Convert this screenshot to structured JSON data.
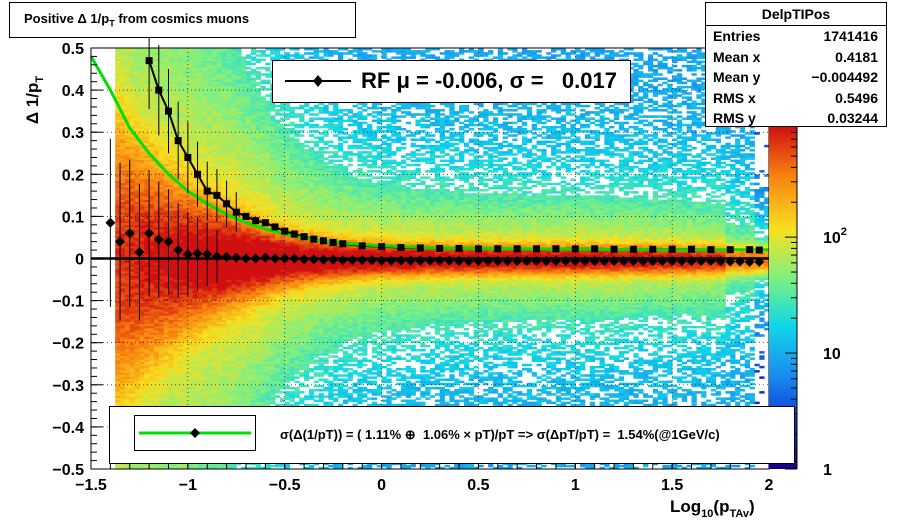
{
  "title": "Positive Δ 1/p",
  "title_sub": "T",
  "title_rest": " from cosmics muons",
  "stats": {
    "name": "DelpTIPos",
    "rows": [
      {
        "label": "Entries",
        "value": "1741416"
      },
      {
        "label": "Mean x",
        "value": "0.4181"
      },
      {
        "label": "Mean y",
        "value": "−0.004492"
      },
      {
        "label": "RMS x",
        "value": "0.5496"
      },
      {
        "label": "RMS y",
        "value": "0.03244"
      }
    ]
  },
  "rf_legend": "RF μ = -0.006, σ =   0.017",
  "fit_legend": "σ(Δ(1/pT)) = ( 1.11% ⊕  1.06% × pT)/pT => σ(ΔpT/pT) =  1.54%(@1GeV/c)",
  "chart_data": {
    "type": "heatmap",
    "title": "Positive Δ 1/pT from cosmics muons",
    "xlabel": "Log10(pTAv)",
    "ylabel": "Δ 1/pT",
    "xlim": [
      -1.5,
      2
    ],
    "ylim": [
      -0.5,
      0.5
    ],
    "x_ticks": [
      "−1.5",
      "−1",
      "−0.5",
      "0",
      "0.5",
      "1",
      "1.5",
      "2"
    ],
    "y_ticks": [
      "−0.5",
      "−0.4",
      "−0.3",
      "−0.2",
      "−0.1",
      "0",
      "0.1",
      "0.2",
      "0.3",
      "0.4",
      "0.5"
    ],
    "z_scale": "log",
    "z_ticks": [
      "1",
      "10",
      "10^2"
    ],
    "grid": true,
    "colors": {
      "fit_line": "#00e000",
      "mean_line": "#000000",
      "markers": "#000000"
    },
    "series": [
      {
        "name": "sigma",
        "marker": "square",
        "x": [
          -1.2,
          -1.15,
          -1.1,
          -1.05,
          -1.0,
          -0.95,
          -0.9,
          -0.85,
          -0.8,
          -0.75,
          -0.7,
          -0.65,
          -0.6,
          -0.55,
          -0.5,
          -0.45,
          -0.4,
          -0.35,
          -0.3,
          -0.25,
          -0.2,
          -0.1,
          0.0,
          0.1,
          0.2,
          0.3,
          0.4,
          0.5,
          0.6,
          0.7,
          0.8,
          0.9,
          1.0,
          1.1,
          1.2,
          1.3,
          1.4,
          1.5,
          1.6,
          1.7,
          1.8,
          1.9,
          1.95
        ],
        "y": [
          0.47,
          0.4,
          0.35,
          0.28,
          0.24,
          0.2,
          0.16,
          0.15,
          0.13,
          0.11,
          0.1,
          0.09,
          0.085,
          0.075,
          0.065,
          0.058,
          0.052,
          0.046,
          0.042,
          0.038,
          0.035,
          0.03,
          0.028,
          0.026,
          0.025,
          0.024,
          0.024,
          0.023,
          0.023,
          0.023,
          0.023,
          0.023,
          0.023,
          0.023,
          0.022,
          0.022,
          0.022,
          0.022,
          0.022,
          0.021,
          0.021,
          0.021,
          0.02
        ]
      },
      {
        "name": "mean",
        "marker": "diamond",
        "x": [
          -1.4,
          -1.35,
          -1.3,
          -1.25,
          -1.2,
          -1.15,
          -1.1,
          -1.05,
          -1.0,
          -0.95,
          -0.9,
          -0.85,
          -0.8,
          -0.75,
          -0.7,
          -0.65,
          -0.6,
          -0.55,
          -0.5,
          -0.45,
          -0.4,
          -0.35,
          -0.3,
          -0.25,
          -0.2,
          -0.15,
          -0.1,
          -0.05,
          0.0,
          0.05,
          0.1,
          0.15,
          0.2,
          0.25,
          0.3,
          0.35,
          0.4,
          0.45,
          0.5,
          0.55,
          0.6,
          0.65,
          0.7,
          0.75,
          0.8,
          0.85,
          0.9,
          0.95,
          1.0,
          1.05,
          1.1,
          1.15,
          1.2,
          1.25,
          1.3,
          1.35,
          1.4,
          1.45,
          1.5,
          1.55,
          1.6,
          1.65,
          1.7,
          1.75,
          1.8,
          1.85,
          1.9,
          1.95
        ],
        "y": [
          0.085,
          0.04,
          0.06,
          0.015,
          0.06,
          0.045,
          0.04,
          0.02,
          0.01,
          0.012,
          0.01,
          0.005,
          0.004,
          0.002,
          0.0,
          0.0,
          0.002,
          0.0,
          0.0,
          0.0,
          -0.002,
          -0.002,
          -0.003,
          -0.003,
          -0.004,
          -0.004,
          -0.004,
          -0.004,
          -0.005,
          -0.005,
          -0.005,
          -0.005,
          -0.005,
          -0.005,
          -0.005,
          -0.005,
          -0.006,
          -0.006,
          -0.006,
          -0.006,
          -0.006,
          -0.006,
          -0.006,
          -0.006,
          -0.006,
          -0.006,
          -0.006,
          -0.006,
          -0.006,
          -0.006,
          -0.006,
          -0.006,
          -0.006,
          -0.006,
          -0.006,
          -0.006,
          -0.006,
          -0.006,
          -0.006,
          -0.006,
          -0.006,
          -0.006,
          -0.006,
          -0.006,
          -0.007,
          -0.007,
          -0.008,
          -0.008
        ]
      },
      {
        "name": "fit",
        "style": "line",
        "x": [
          -1.5,
          -1.4,
          -1.3,
          -1.2,
          -1.1,
          -1.0,
          -0.9,
          -0.8,
          -0.7,
          -0.6,
          -0.5,
          -0.4,
          -0.3,
          -0.2,
          -0.1,
          0.0,
          0.25,
          0.5,
          1.0,
          1.5,
          2.0
        ],
        "y": [
          0.48,
          0.4,
          0.31,
          0.25,
          0.2,
          0.16,
          0.13,
          0.105,
          0.085,
          0.07,
          0.058,
          0.048,
          0.042,
          0.037,
          0.033,
          0.03,
          0.026,
          0.024,
          0.022,
          0.021,
          0.021
        ]
      }
    ]
  }
}
